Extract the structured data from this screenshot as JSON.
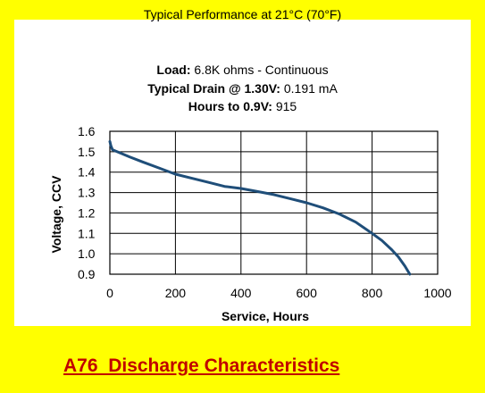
{
  "header": {
    "line1": "Typical Performance at 21°C (70°F)",
    "load_label": "Load:",
    "load_value": " 6.8K ohms - Continuous",
    "drain_label": "Typical Drain @ 1.30V:",
    "drain_value": " 0.191 mA",
    "hours_label": "Hours to 0.9V:",
    "hours_value": " 915"
  },
  "footer": {
    "text": "A76  Discharge Characteristics"
  },
  "colors": {
    "background": "#FFFF00",
    "line": "#1F4E79",
    "footer_text": "#C00000"
  },
  "chart_data": {
    "type": "line",
    "xlabel": "Service, Hours",
    "ylabel": "Voltage, CCV",
    "xlim": [
      0,
      1000
    ],
    "ylim": [
      0.9,
      1.6
    ],
    "xticks": [
      0,
      200,
      400,
      600,
      800,
      1000
    ],
    "yticks": [
      1.6,
      1.5,
      1.4,
      1.3,
      1.2,
      1.1,
      1.0,
      0.9
    ],
    "grid": true,
    "series": [
      {
        "x": [
          0,
          3,
          8,
          15,
          30,
          60,
          100,
          150,
          200,
          250,
          300,
          350,
          400,
          450,
          500,
          550,
          600,
          650,
          700,
          750,
          800,
          830,
          860,
          880,
          900,
          915
        ],
        "y": [
          1.55,
          1.53,
          1.51,
          1.505,
          1.495,
          1.475,
          1.45,
          1.42,
          1.39,
          1.37,
          1.35,
          1.33,
          1.32,
          1.305,
          1.29,
          1.27,
          1.25,
          1.225,
          1.195,
          1.155,
          1.1,
          1.065,
          1.02,
          0.985,
          0.94,
          0.9
        ]
      }
    ]
  }
}
